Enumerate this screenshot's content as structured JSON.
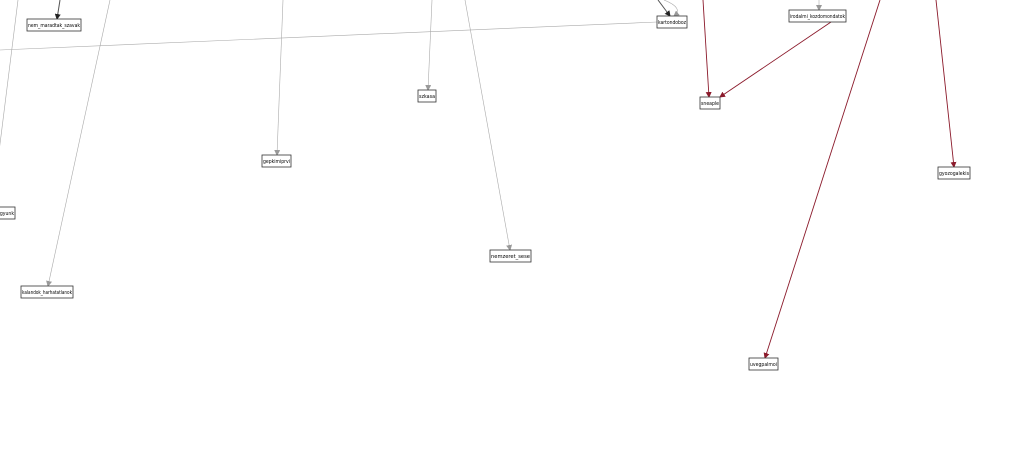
{
  "colors": {
    "edge_gray": "#aaaaaa",
    "edge_dark": "#555555",
    "edge_red": "#8b1a2b",
    "node_stroke": "#333333",
    "background": "#ffffff"
  },
  "nodes": [
    {
      "id": "nem_maradtak_szavak",
      "label": "nem_maradtak_szavak"
    },
    {
      "id": "kartondoboz",
      "label": "kartondoboz"
    },
    {
      "id": "irodalmi_kozdomondatok",
      "label": "irodalmi_kozdomondatok"
    },
    {
      "id": "szkasa",
      "label": "szkasa"
    },
    {
      "id": "sneaple",
      "label": "sneaple"
    },
    {
      "id": "gepkimiprvi",
      "label": "gepkimiprvi"
    },
    {
      "id": "gyozogalekis",
      "label": "gyozogalekis"
    },
    {
      "id": "egyunk",
      "label": "egyunk"
    },
    {
      "id": "nemzeret_sese",
      "label": "nemzeret_sese"
    },
    {
      "id": "kalandok_harhatatlanok",
      "label": "kalandok_harhatatlanok"
    },
    {
      "id": "uvegpalmoi",
      "label": "uvegpalmoi"
    }
  ],
  "edges": [
    {
      "from": "kartondoboz",
      "to": "left-margin",
      "style": "gray"
    },
    {
      "from": "top",
      "to": "nem_maradtak_szavak",
      "style": "dark"
    },
    {
      "from": "top",
      "to": "kartondoboz",
      "style": "dark"
    },
    {
      "from": "top",
      "to": "kartondoboz",
      "style": "gray"
    },
    {
      "from": "top",
      "to": "irodalmi_kozdomondatok",
      "style": "gray"
    },
    {
      "from": "irodalmi_kozdomondatok",
      "to": "sneaple",
      "style": "red"
    },
    {
      "from": "top",
      "to": "sneaple",
      "style": "red"
    },
    {
      "from": "top",
      "to": "szkasa",
      "style": "gray"
    },
    {
      "from": "top",
      "to": "gepkimiprvi",
      "style": "gray"
    },
    {
      "from": "top",
      "to": "nemzeret_sese",
      "style": "gray"
    },
    {
      "from": "top",
      "to": "kalandok_harhatatlanok",
      "style": "gray"
    },
    {
      "from": "top",
      "to": "uvegpalmoi",
      "style": "red"
    },
    {
      "from": "top",
      "to": "gyozogalekis",
      "style": "red"
    },
    {
      "from": "top",
      "to": "left-margin",
      "style": "gray"
    }
  ]
}
